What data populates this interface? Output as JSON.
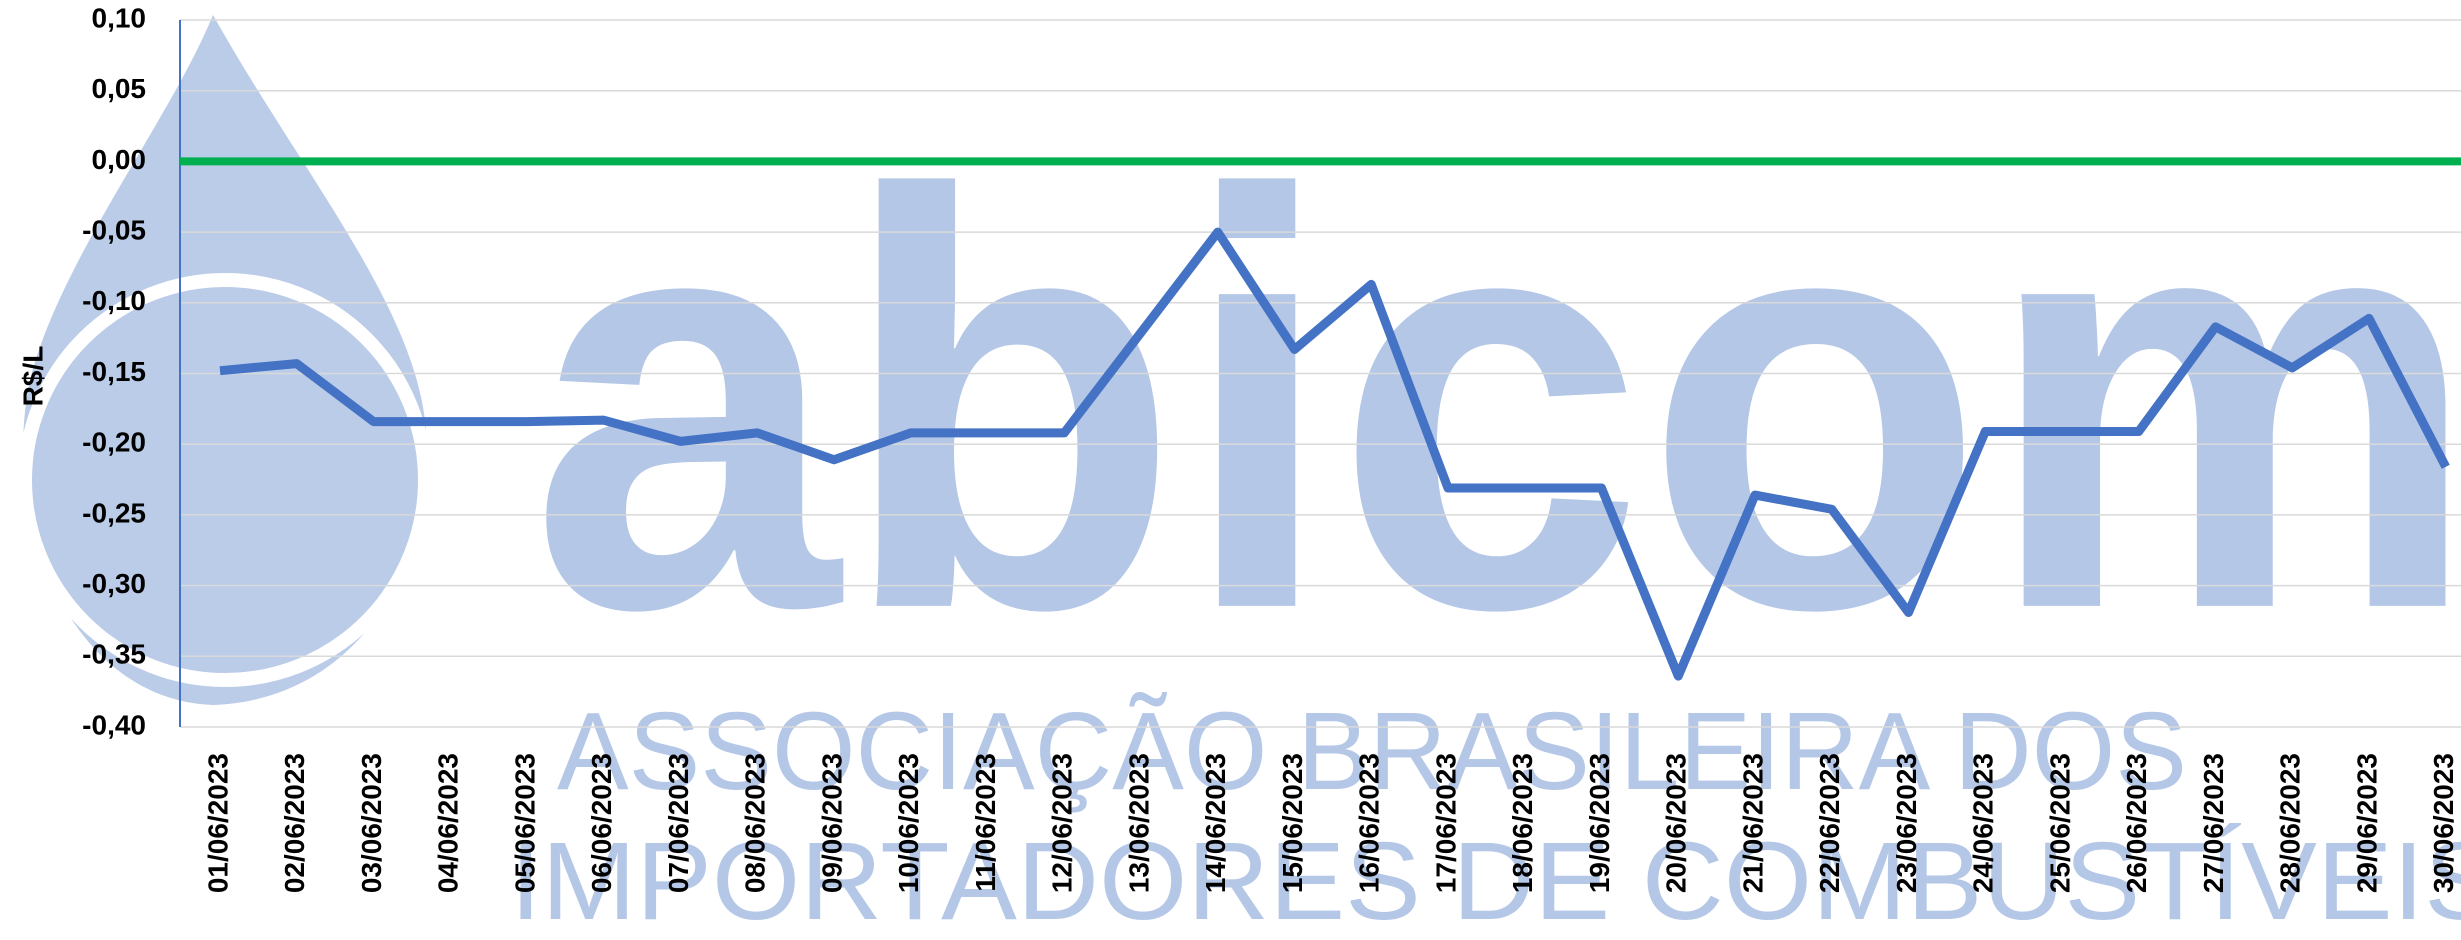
{
  "chart_data": {
    "type": "line",
    "y_label": "R$/L",
    "watermark": [
      "abicom",
      "ASSOCIAÇÃO BRASILEIRA DOS",
      "IMPORTADORES DE COMBUSTÍVEIS"
    ],
    "categories": [
      "01/06/2023",
      "02/06/2023",
      "03/06/2023",
      "04/06/2023",
      "05/06/2023",
      "06/06/2023",
      "07/06/2023",
      "08/06/2023",
      "09/06/2023",
      "10/06/2023",
      "11/06/2023",
      "12/06/2023",
      "13/06/2023",
      "14/06/2023",
      "15/06/2023",
      "16/06/2023",
      "17/06/2023",
      "18/06/2023",
      "19/06/2023",
      "20/06/2023",
      "21/06/2023",
      "22/06/2023",
      "23/06/2023",
      "24/06/2023",
      "25/06/2023",
      "26/06/2023",
      "27/06/2023",
      "28/06/2023",
      "29/06/2023",
      "30/06/2023"
    ],
    "series": [
      {
        "name": "R$/L",
        "color": "#4472c4",
        "values": [
          -0.148,
          -0.143,
          -0.184,
          -0.184,
          -0.184,
          -0.183,
          -0.198,
          -0.192,
          -0.211,
          -0.192,
          -0.192,
          -0.192,
          -0.121,
          -0.05,
          -0.133,
          -0.087,
          -0.231,
          -0.231,
          -0.231,
          -0.364,
          -0.236,
          -0.246,
          -0.319,
          -0.191,
          -0.191,
          -0.191,
          -0.117,
          -0.146,
          -0.111,
          -0.216
        ]
      }
    ],
    "ylim": [
      -0.4,
      0.1
    ],
    "yticks": [
      {
        "value": 0.1,
        "label": "0,10"
      },
      {
        "value": 0.05,
        "label": "0,05"
      },
      {
        "value": 0,
        "label": "0,00"
      },
      {
        "value": -0.05,
        "label": "-0,05"
      },
      {
        "value": -0.1,
        "label": "-0,10"
      },
      {
        "value": -0.15,
        "label": "-0,15"
      },
      {
        "value": -0.2,
        "label": "-0,20"
      },
      {
        "value": -0.25,
        "label": "-0,25"
      },
      {
        "value": -0.3,
        "label": "-0,30"
      },
      {
        "value": -0.35,
        "label": "-0,35"
      },
      {
        "value": -0.4,
        "label": "-0,40"
      }
    ],
    "grid": true,
    "zero_line_color": "#00b050"
  }
}
